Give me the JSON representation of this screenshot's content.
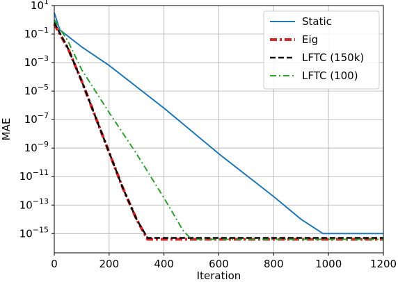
{
  "chart_data": {
    "type": "line",
    "title": "",
    "xlabel": "Iteration",
    "ylabel": "MAE",
    "xlim": [
      0,
      1200
    ],
    "yscale": "log",
    "ylim_exp": [
      -16,
      1
    ],
    "xticks": [
      0,
      200,
      400,
      600,
      800,
      1000,
      1200
    ],
    "xtick_labels": [
      "0",
      "200",
      "400",
      "600",
      "800",
      "1000",
      "1200"
    ],
    "yticks_exp": [
      1,
      -1,
      -3,
      -5,
      -7,
      -9,
      -11,
      -13,
      -15
    ],
    "ytick_labels": [
      {
        "base": "10",
        "exp": "1"
      },
      {
        "base": "10",
        "exp": "−1"
      },
      {
        "base": "10",
        "exp": "−3"
      },
      {
        "base": "10",
        "exp": "−5"
      },
      {
        "base": "10",
        "exp": "−7"
      },
      {
        "base": "10",
        "exp": "−9"
      },
      {
        "base": "10",
        "exp": "−11"
      },
      {
        "base": "10",
        "exp": "−13"
      },
      {
        "base": "10",
        "exp": "−15"
      }
    ],
    "grid": true,
    "legend_position": "top-right",
    "series": [
      {
        "name": "Static",
        "color": "#1f77b4",
        "style": "solid",
        "x": [
          0,
          20,
          100,
          200,
          400,
          600,
          800,
          900,
          980,
          1200
        ],
        "log10_y": [
          0.5,
          -0.7,
          -1.9,
          -3.2,
          -6.2,
          -9.4,
          -12.4,
          -14.0,
          -15.0,
          -15.0
        ]
      },
      {
        "name": "Eig",
        "color": "#d62728",
        "style": "dashdot-thick",
        "x": [
          0,
          50,
          100,
          150,
          200,
          250,
          300,
          340,
          360,
          1200
        ],
        "log10_y": [
          -0.3,
          -2.0,
          -4.3,
          -6.8,
          -9.3,
          -11.8,
          -14.0,
          -15.4,
          -15.4,
          -15.4
        ]
      },
      {
        "name": "LFTC (150k)",
        "color": "#000000",
        "style": "dashed",
        "x": [
          0,
          50,
          100,
          150,
          200,
          250,
          300,
          340,
          360,
          1200
        ],
        "log10_y": [
          -0.2,
          -2.0,
          -4.3,
          -6.8,
          -9.3,
          -11.8,
          -14.0,
          -15.3,
          -15.3,
          -15.3
        ]
      },
      {
        "name": "LFTC (100)",
        "color": "#2ca02c",
        "style": "dashdot",
        "x": [
          0,
          50,
          100,
          200,
          300,
          400,
          470,
          500,
          1200
        ],
        "log10_y": [
          0.0,
          -1.5,
          -3.5,
          -6.5,
          -9.4,
          -12.5,
          -14.8,
          -15.4,
          -15.4
        ]
      }
    ]
  }
}
